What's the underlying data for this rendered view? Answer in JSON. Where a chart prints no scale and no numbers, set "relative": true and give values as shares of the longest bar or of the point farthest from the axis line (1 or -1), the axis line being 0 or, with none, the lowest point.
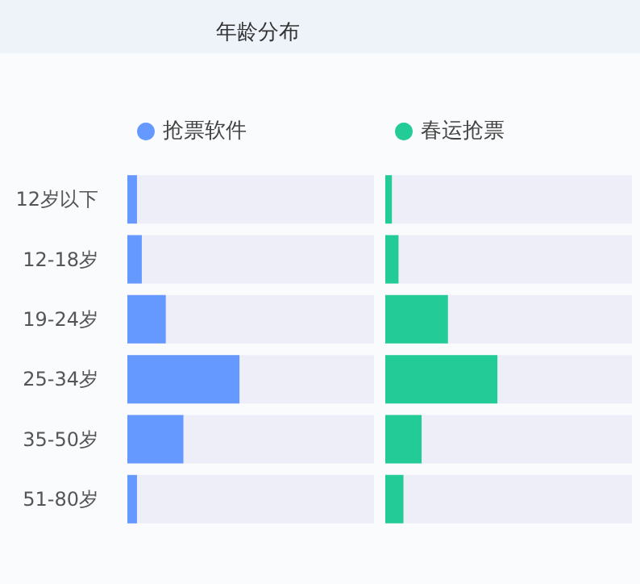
{
  "chart_data": [
    {
      "type": "bar",
      "title": "年龄分布",
      "orientation": "horizontal",
      "relative": true,
      "legend": "top",
      "categories": [
        "12岁以下",
        "12-18岁",
        "19-24岁",
        "25-34岁",
        "35-50岁",
        "51-80岁"
      ],
      "series": [
        {
          "name": "抢票软件",
          "color": "#6699ff",
          "values": [
            0.086,
            0.129,
            0.343,
            1,
            0.5,
            0.086
          ]
        }
      ]
    },
    {
      "type": "bar",
      "orientation": "horizontal",
      "relative": true,
      "legend": "top",
      "tick_labels": false,
      "categories": [
        null,
        null,
        null,
        null,
        null,
        null
      ],
      "series": [
        {
          "name": "春运抢票",
          "color": "#23cc96",
          "values": [
            0.059,
            0.118,
            0.559,
            1,
            0.324,
            0.162
          ]
        }
      ]
    }
  ]
}
